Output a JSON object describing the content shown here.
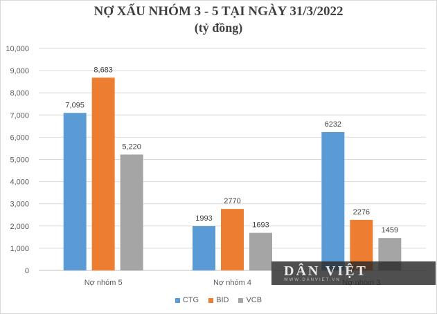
{
  "chart_data": {
    "type": "bar",
    "title": "NỢ XẤU NHÓM 3 - 5 TẠI NGÀY 31/3/2022",
    "subtitle": "(tỷ đồng)",
    "categories": [
      "Nợ nhóm 5",
      "Nợ nhóm 4",
      "Nợ nhóm 3"
    ],
    "series": [
      {
        "name": "CTG",
        "color": "#5b9bd5",
        "values": [
          7095,
          1993,
          6232
        ],
        "labels": [
          "7,095",
          "1993",
          "6232"
        ]
      },
      {
        "name": "BID",
        "color": "#ed7d31",
        "values": [
          8683,
          2770,
          2276
        ],
        "labels": [
          "8,683",
          "2770",
          "2276"
        ]
      },
      {
        "name": "VCB",
        "color": "#a5a5a5",
        "values": [
          5220,
          1693,
          1459
        ],
        "labels": [
          "5,220",
          "1693",
          "1459"
        ]
      }
    ],
    "yticks": [
      0,
      1000,
      2000,
      3000,
      4000,
      5000,
      6000,
      7000,
      8000,
      9000,
      10000
    ],
    "ytick_labels": [
      "0",
      "1,000",
      "2,000",
      "3,000",
      "4,000",
      "5,000",
      "6,000",
      "7,000",
      "8,000",
      "9,000",
      "10,000"
    ],
    "ylim": [
      0,
      10000
    ],
    "grid": true,
    "legend": "bottom",
    "xlabel": "",
    "ylabel": ""
  },
  "watermark": {
    "text": "DÂN VIỆT",
    "sub": "WWW.DANVIET.VN"
  }
}
